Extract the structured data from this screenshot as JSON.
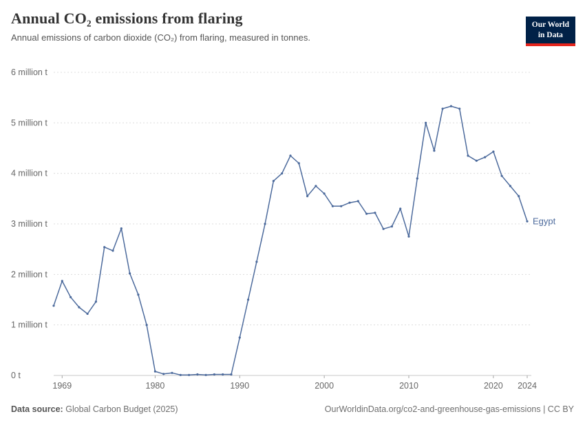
{
  "header": {
    "title": "Annual CO₂ emissions from flaring",
    "subtitle": "Annual emissions of carbon dioxide (CO₂) from flaring, measured in tonnes."
  },
  "logo": {
    "line1": "Our World",
    "line2": "in Data"
  },
  "footer": {
    "source_label": "Data source:",
    "source_text": "Global Carbon Budget (2025)",
    "right_text": "OurWorldinData.org/co2-and-greenhouse-gas-emissions | CC BY"
  },
  "colors": {
    "line": "#4C6A9C",
    "grid": "#dcdcdc",
    "axis": "#c8c8c8",
    "tick_text": "#666666",
    "logo_bg": "#002147",
    "logo_accent": "#e5251d"
  },
  "chart_data": {
    "type": "line",
    "title": "Annual CO₂ emissions from flaring",
    "subtitle": "Annual emissions of carbon dioxide (CO₂) from flaring, measured in tonnes.",
    "unit": "million tonnes",
    "xlabel": "",
    "ylabel": "",
    "xlim": [
      1968,
      2024
    ],
    "ylim": [
      0,
      6
    ],
    "grid": "dashed-horizontal",
    "legend_position": "end-of-line-label",
    "x_ticks": [
      1969,
      1980,
      1990,
      2000,
      2010,
      2020,
      2024
    ],
    "y_ticks": [
      {
        "value": 0,
        "label": "0 t"
      },
      {
        "value": 1,
        "label": "1 million t"
      },
      {
        "value": 2,
        "label": "2 million t"
      },
      {
        "value": 3,
        "label": "3 million t"
      },
      {
        "value": 4,
        "label": "4 million t"
      },
      {
        "value": 5,
        "label": "5 million t"
      },
      {
        "value": 6,
        "label": "6 million t"
      }
    ],
    "series": [
      {
        "name": "Egypt",
        "color": "#4C6A9C",
        "x": [
          1968,
          1969,
          1970,
          1971,
          1972,
          1973,
          1974,
          1975,
          1976,
          1977,
          1978,
          1979,
          1980,
          1981,
          1982,
          1983,
          1984,
          1985,
          1986,
          1987,
          1988,
          1989,
          1990,
          1991,
          1992,
          1993,
          1994,
          1995,
          1996,
          1997,
          1998,
          1999,
          2000,
          2001,
          2002,
          2003,
          2004,
          2005,
          2006,
          2007,
          2008,
          2009,
          2010,
          2011,
          2012,
          2013,
          2014,
          2015,
          2016,
          2017,
          2018,
          2019,
          2020,
          2021,
          2022,
          2023,
          2024
        ],
        "values": [
          1.38,
          1.87,
          1.55,
          1.35,
          1.22,
          1.46,
          2.54,
          2.47,
          2.91,
          2.02,
          1.6,
          1.0,
          0.08,
          0.03,
          0.05,
          0.01,
          0.01,
          0.02,
          0.01,
          0.02,
          0.02,
          0.02,
          0.75,
          1.5,
          2.25,
          3.0,
          3.85,
          4.0,
          4.35,
          4.2,
          3.55,
          3.75,
          3.6,
          3.35,
          3.35,
          3.42,
          3.45,
          3.2,
          3.22,
          2.9,
          2.95,
          3.3,
          2.75,
          3.9,
          5.0,
          4.45,
          5.28,
          5.33,
          5.28,
          4.35,
          4.25,
          4.32,
          4.43,
          3.95,
          3.75,
          3.55,
          3.05
        ]
      }
    ]
  }
}
